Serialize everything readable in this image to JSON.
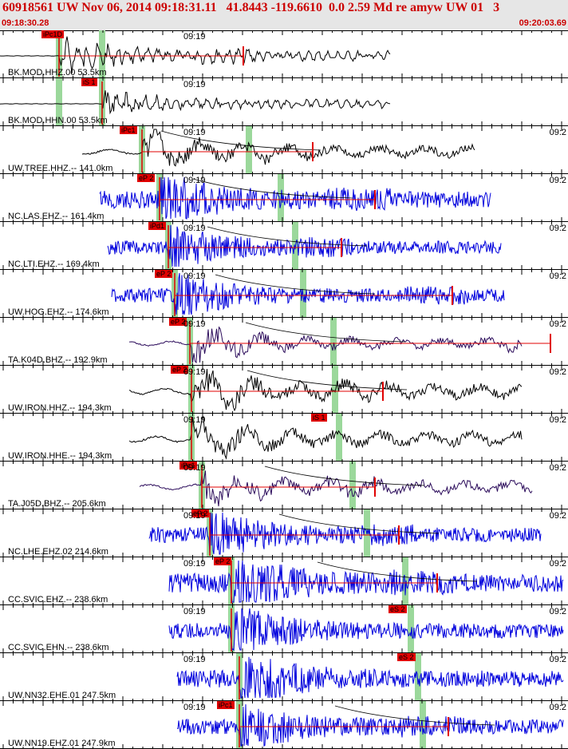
{
  "header": {
    "title": "60918561 UW Nov 06, 2014 09:18:31.11   41.8443 -119.6610  0.0 2.59 Md re amyw UW 01   3",
    "start_time": "09:18:30.28",
    "end_time": "09:20:03.69"
  },
  "colors": {
    "header_bg": "#e6e6e6",
    "title_red": "#cc0000",
    "pick_red": "#e00000",
    "trace_black": "#000000",
    "trace_blue": "#0000dd",
    "trace_purple": "#2a0a5a",
    "green_band": "#9bd89b"
  },
  "panels": [
    {
      "label": "BK.MOD.HHZ.00 53.5km",
      "time_label": "09:19",
      "time_right": "",
      "pick": "iPc1D",
      "trace_color": "black"
    },
    {
      "label": "BK.MOD.HHN.00 53.5km",
      "time_label": "09:19",
      "time_right": "",
      "pick": "iS 1",
      "trace_color": "black"
    },
    {
      "label": "UW.TREE.HHZ.-- 141.0km",
      "time_label": "09:19",
      "time_right": "09:2",
      "pick": "iPc1",
      "trace_color": "black"
    },
    {
      "label": "NC.LAS.EHZ.-- 161.4km",
      "time_label": "09:19",
      "time_right": "09:2",
      "pick": "eP 2",
      "trace_color": "blue"
    },
    {
      "label": "NC.LTI.EHZ.-- 169.4km",
      "time_label": "09:19",
      "time_right": "09:2",
      "pick": "iPd1",
      "trace_color": "blue"
    },
    {
      "label": "UW.HOG.EHZ.-- 174.6km",
      "time_label": "09:19",
      "time_right": "09:2",
      "pick": "eP 2",
      "trace_color": "blue"
    },
    {
      "label": "TA.K04D.BHZ.-- 192.9km",
      "time_label": "09:19",
      "time_right": "09:2",
      "pick": "eP 2",
      "trace_color": "purple"
    },
    {
      "label": "UW.IRON.HHZ.-- 194.3km",
      "time_label": "09:19",
      "time_right": "09:2",
      "pick": "eP 2",
      "trace_color": "black"
    },
    {
      "label": "UW.IRON.HHE.-- 194.3km",
      "time_label": "09:19",
      "time_right": "09:2",
      "pick": "iS 1",
      "trace_color": "black"
    },
    {
      "label": "TA.J05D.BHZ.-- 205.6km",
      "time_label": "09:19",
      "time_right": "09:2",
      "pick": "iPc1",
      "trace_color": "purple"
    },
    {
      "label": "NC.LHE.EHZ.02 214.6km",
      "time_label": "09:19",
      "time_right": "09:2",
      "pick": "eP 2",
      "trace_color": "blue"
    },
    {
      "label": "CC.SVIC.EHZ.-- 238.6km",
      "time_label": "09:19",
      "time_right": "09:2",
      "pick": "eP 2",
      "trace_color": "blue"
    },
    {
      "label": "CC.SVIC.EHN.-- 238.6km",
      "time_label": "09:19",
      "time_right": "09:2",
      "pick": "eS 2",
      "trace_color": "blue"
    },
    {
      "label": "UW.NN32.EHE.01 247.5km",
      "time_label": "09:19",
      "time_right": "09:2",
      "pick": "eS 2",
      "trace_color": "blue"
    },
    {
      "label": "UW.NN19.EHZ.01 247.9km",
      "time_label": "09:19",
      "time_right": "09:2",
      "pick": "iPc1",
      "trace_color": "blue"
    }
  ]
}
